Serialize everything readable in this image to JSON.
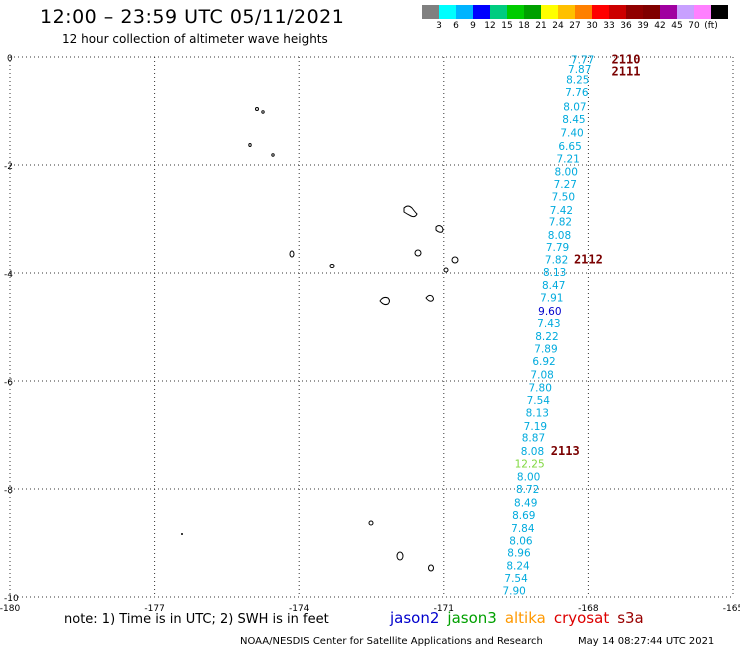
{
  "header": {
    "title": "12:00 – 23:59 UTC 05/11/2021",
    "subtitle": "12 hour collection of altimeter wave heights"
  },
  "legend": {
    "colors": [
      "#808080",
      "#00ffff",
      "#00b4ff",
      "#0000ff",
      "#00cc80",
      "#00cc00",
      "#00a000",
      "#ffff00",
      "#ffc000",
      "#ff8000",
      "#ff0000",
      "#cc0000",
      "#900000",
      "#800000",
      "#a000a0",
      "#c8a0ff",
      "#ff80ff",
      "#000000"
    ],
    "ticks": [
      "3",
      "6",
      "9",
      "12",
      "15",
      "18",
      "21",
      "24",
      "27",
      "30",
      "33",
      "36",
      "39",
      "42",
      "45",
      "70",
      "(ft)"
    ]
  },
  "map": {
    "lon_range": [
      -180,
      -165
    ],
    "lat_range": [
      -10,
      0
    ],
    "x_ticks": [
      "-180",
      "-177",
      "-174",
      "-171",
      "-168",
      "-165"
    ],
    "y_ticks": [
      "0",
      "-2",
      "-4",
      "-6",
      "-8",
      "-10"
    ]
  },
  "observations": [
    {
      "v": "7.77",
      "lon": -168.12,
      "lat": -0.05
    },
    {
      "v": "7.87",
      "lon": -168.18,
      "lat": -0.22
    },
    {
      "v": "8.25",
      "lon": -168.22,
      "lat": -0.42
    },
    {
      "v": "7.76",
      "lon": -168.24,
      "lat": -0.65
    },
    {
      "v": "8.07",
      "lon": -168.28,
      "lat": -0.92
    },
    {
      "v": "8.45",
      "lon": -168.3,
      "lat": -1.15
    },
    {
      "v": "7.40",
      "lon": -168.34,
      "lat": -1.4
    },
    {
      "v": "6.65",
      "lon": -168.38,
      "lat": -1.65
    },
    {
      "v": "7.21",
      "lon": -168.42,
      "lat": -1.88
    },
    {
      "v": "8.00",
      "lon": -168.46,
      "lat": -2.12
    },
    {
      "v": "7.27",
      "lon": -168.48,
      "lat": -2.35
    },
    {
      "v": "7.50",
      "lon": -168.52,
      "lat": -2.58
    },
    {
      "v": "7.42",
      "lon": -168.56,
      "lat": -2.83
    },
    {
      "v": "7.82",
      "lon": -168.58,
      "lat": -3.05
    },
    {
      "v": "8.08",
      "lon": -168.6,
      "lat": -3.3
    },
    {
      "v": "7.79",
      "lon": -168.64,
      "lat": -3.52
    },
    {
      "v": "7.82",
      "lon": -168.66,
      "lat": -3.75
    },
    {
      "v": "8.13",
      "lon": -168.7,
      "lat": -3.98
    },
    {
      "v": "8.47",
      "lon": -168.72,
      "lat": -4.22
    },
    {
      "v": "7.91",
      "lon": -168.76,
      "lat": -4.45
    },
    {
      "v": "9.60",
      "lon": -168.8,
      "lat": -4.7,
      "c": "#0000cc"
    },
    {
      "v": "7.43",
      "lon": -168.82,
      "lat": -4.93
    },
    {
      "v": "8.22",
      "lon": -168.86,
      "lat": -5.17
    },
    {
      "v": "7.89",
      "lon": -168.88,
      "lat": -5.4
    },
    {
      "v": "6.92",
      "lon": -168.92,
      "lat": -5.63
    },
    {
      "v": "7.08",
      "lon": -168.96,
      "lat": -5.88
    },
    {
      "v": "7.80",
      "lon": -169.0,
      "lat": -6.12
    },
    {
      "v": "7.54",
      "lon": -169.04,
      "lat": -6.35
    },
    {
      "v": "8.13",
      "lon": -169.06,
      "lat": -6.58
    },
    {
      "v": "7.19",
      "lon": -169.1,
      "lat": -6.83
    },
    {
      "v": "8.87",
      "lon": -169.14,
      "lat": -7.05
    },
    {
      "v": "8.08",
      "lon": -169.16,
      "lat": -7.3
    },
    {
      "v": "12.25",
      "lon": -169.22,
      "lat": -7.53,
      "c": "#80d840"
    },
    {
      "v": "8.00",
      "lon": -169.24,
      "lat": -7.77
    },
    {
      "v": "8.72",
      "lon": -169.26,
      "lat": -8.0
    },
    {
      "v": "8.49",
      "lon": -169.3,
      "lat": -8.25
    },
    {
      "v": "8.69",
      "lon": -169.34,
      "lat": -8.48
    },
    {
      "v": "7.84",
      "lon": -169.36,
      "lat": -8.72
    },
    {
      "v": "8.06",
      "lon": -169.4,
      "lat": -8.95
    },
    {
      "v": "8.96",
      "lon": -169.44,
      "lat": -9.18
    },
    {
      "v": "8.24",
      "lon": -169.46,
      "lat": -9.42
    },
    {
      "v": "7.54",
      "lon": -169.5,
      "lat": -9.65
    },
    {
      "v": "7.90",
      "lon": -169.54,
      "lat": -9.88
    }
  ],
  "pass_labels": [
    {
      "t": "2110",
      "lon": -167.22,
      "lat": -0.05
    },
    {
      "t": "2111",
      "lon": -167.22,
      "lat": -0.27
    },
    {
      "t": "2112",
      "lon": -168.0,
      "lat": -3.75
    },
    {
      "t": "2113",
      "lon": -168.48,
      "lat": -7.3
    }
  ],
  "colors": {
    "obs": "#00aadd",
    "pass": "#7a0000",
    "grid": "#333333"
  },
  "note": "note: 1) Time is in UTC; 2) SWH is in feet",
  "satellites": [
    {
      "name": "jason2",
      "color": "#0000cc"
    },
    {
      "name": "jason3",
      "color": "#00a000"
    },
    {
      "name": "altika",
      "color": "#ff9900"
    },
    {
      "name": "cryosat",
      "color": "#dd0000"
    },
    {
      "name": "s3a",
      "color": "#990000"
    }
  ],
  "footer": {
    "credit": "NOAA/NESDIS Center for Satellite Applications and Research",
    "timestamp": "May 14 08:27:44 UTC 2021"
  }
}
